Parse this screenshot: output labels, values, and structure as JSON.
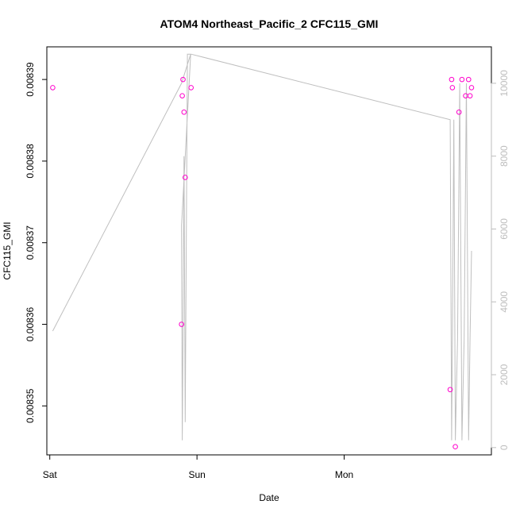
{
  "chart_data": {
    "type": "scatter",
    "title": "ATOM4 Northeast_Pacific_2 CFC115_GMI",
    "xlabel": "Date",
    "ylabel": "CFC115_GMI",
    "x_ticks": [
      {
        "label": "Sat",
        "t": 0
      },
      {
        "label": "Sun",
        "t": 1
      },
      {
        "label": "Mon",
        "t": 2
      }
    ],
    "xlim": [
      -0.02,
      3.0
    ],
    "ylim": [
      0.008344,
      0.008394
    ],
    "y_ticks": [
      0.00835,
      0.00836,
      0.00837,
      0.00838,
      0.00839
    ],
    "y_tick_labels": [
      "0.00835",
      "0.00836",
      "0.00837",
      "0.00838",
      "0.00839"
    ],
    "y2_ticks": [
      0,
      2000,
      4000,
      6000,
      8000,
      10000
    ],
    "y2_tick_labels": [
      "0",
      "2000",
      "4000",
      "6000",
      "8000",
      "10000"
    ],
    "y2lim": [
      -200,
      11000
    ],
    "grid": false,
    "colors": {
      "points": "#ff00cc",
      "line": "#bfbfbf",
      "axis": "#000000",
      "right_axis": "#bdbdbd"
    },
    "series": [
      {
        "marker": "circle-open",
        "axis": "left",
        "t": [
          0.02,
          0.895,
          0.9,
          0.905,
          0.912,
          0.92,
          0.96,
          2.72,
          2.73,
          2.735,
          2.755,
          2.78,
          2.8,
          2.825,
          2.845,
          2.855,
          2.865
        ],
        "values": [
          0.008389,
          0.00836,
          0.008388,
          0.00839,
          0.008386,
          0.008378,
          0.008389,
          0.008352,
          0.00839,
          0.008389,
          0.008345,
          0.008386,
          0.00839,
          0.008388,
          0.00839,
          0.008388,
          0.008389
        ]
      },
      {
        "marker": "line",
        "axis": "right",
        "t": [
          0.02,
          0.895,
          0.957,
          0.895,
          0.9,
          0.905,
          0.912,
          0.92,
          0.935,
          0.945,
          0.955,
          0.96,
          0.96,
          2.72,
          2.73,
          2.735,
          2.745,
          2.755,
          2.77,
          2.785,
          2.8,
          2.815,
          2.83,
          2.845,
          2.855,
          2.865
        ],
        "values": [
          3200,
          10000,
          10800,
          6100,
          200,
          3000,
          8000,
          700,
          10800,
          10800,
          10800,
          10800,
          10800,
          9000,
          200,
          3000,
          9000,
          200,
          3000,
          10000,
          200,
          3000,
          10000,
          200,
          3000,
          5400
        ]
      }
    ]
  }
}
